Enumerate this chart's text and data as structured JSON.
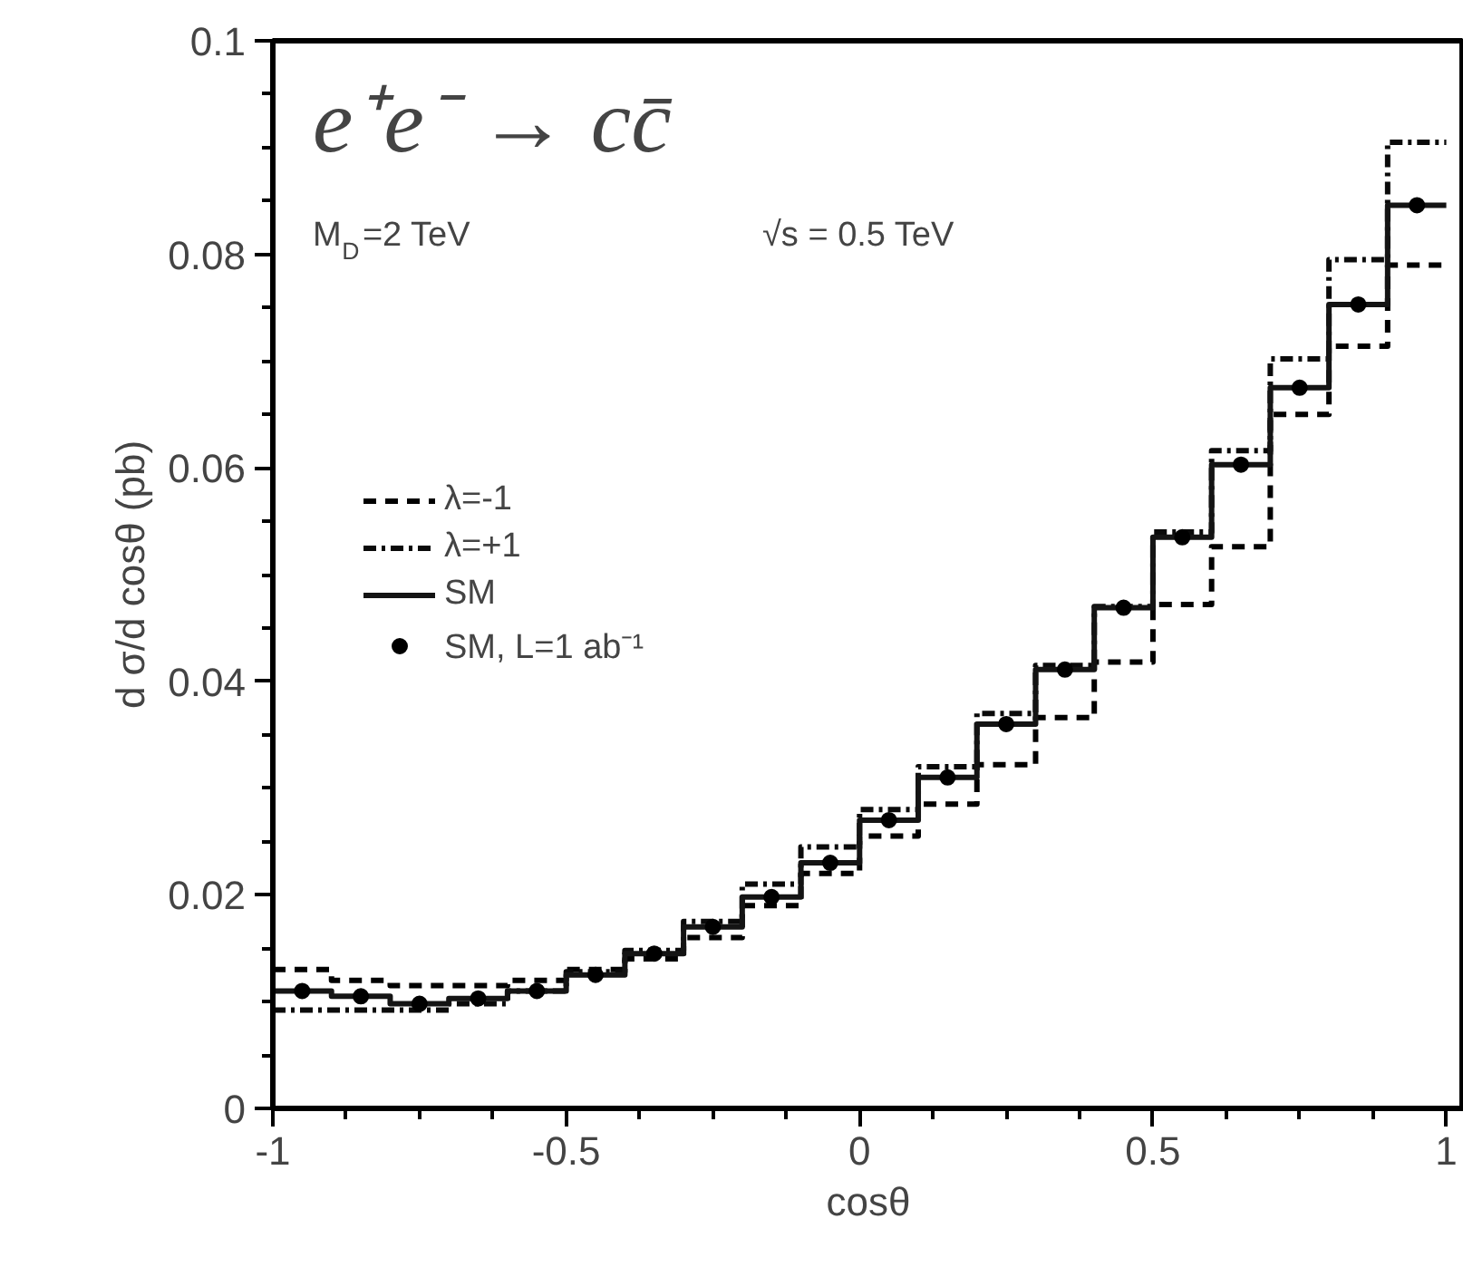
{
  "chart_data": {
    "type": "histogram",
    "title": "e⁺e⁻ → cc̄",
    "xlabel": "cosθ",
    "ylabel": "d σ/d cosθ (pb)",
    "annotations": [
      "M$_{D}$=2 TeV",
      "√s = 0.5 TeV"
    ],
    "bins": [
      -1,
      -0.9,
      -0.8,
      -0.7,
      -0.6,
      -0.5,
      -0.4,
      -0.3,
      -0.2,
      -0.1,
      0,
      0.1,
      0.2,
      0.3,
      0.4,
      0.5,
      0.6,
      0.7,
      0.8,
      0.9,
      1
    ],
    "series": [
      {
        "name": "λ=-1",
        "color": "#000000",
        "line_style": "dashed",
        "values": [
          0.013,
          0.012,
          0.0115,
          0.0115,
          0.012,
          0.013,
          0.014,
          0.016,
          0.019,
          0.022,
          0.0255,
          0.0285,
          0.0322,
          0.0366,
          0.0418,
          0.0472,
          0.0526,
          0.065,
          0.0714,
          0.079
        ]
      },
      {
        "name": "λ=+1",
        "color": "#0a0a0a",
        "line_style": "dashdot",
        "values": [
          0.0092,
          0.0092,
          0.0092,
          0.0098,
          0.011,
          0.0128,
          0.0148,
          0.0175,
          0.021,
          0.0245,
          0.028,
          0.032,
          0.037,
          0.0415,
          0.047,
          0.054,
          0.0616,
          0.0702,
          0.0795,
          0.0905
        ]
      },
      {
        "name": "SM",
        "color": "#141414",
        "line_style": "solid",
        "values": [
          0.011,
          0.0105,
          0.0098,
          0.0103,
          0.011,
          0.0125,
          0.0145,
          0.017,
          0.0198,
          0.023,
          0.027,
          0.031,
          0.036,
          0.0411,
          0.0469,
          0.0535,
          0.0603,
          0.0675,
          0.0753,
          0.0846
        ]
      },
      {
        "name": "SM, L=1 ab⁻¹",
        "type": "scatter",
        "marker": "circle",
        "color": "#000000",
        "x": [
          -0.95,
          -0.85,
          -0.75,
          -0.65,
          -0.55,
          -0.45,
          -0.35,
          -0.25,
          -0.15,
          -0.05,
          0.05,
          0.15,
          0.25,
          0.35,
          0.45,
          0.55,
          0.65,
          0.75,
          0.85,
          0.95
        ],
        "values": [
          0.011,
          0.0105,
          0.0098,
          0.0103,
          0.011,
          0.0125,
          0.0145,
          0.017,
          0.0198,
          0.023,
          0.027,
          0.031,
          0.036,
          0.0411,
          0.0469,
          0.0535,
          0.0603,
          0.0675,
          0.0753,
          0.0846
        ]
      }
    ],
    "xlim": [
      -1,
      1.03
    ],
    "ylim": [
      0,
      0.1
    ],
    "xticks": [
      -1,
      -0.5,
      0,
      0.5,
      1
    ],
    "yticks": [
      0,
      0.02,
      0.04,
      0.06,
      0.08,
      0.1
    ],
    "grid": false,
    "legend": "left"
  }
}
